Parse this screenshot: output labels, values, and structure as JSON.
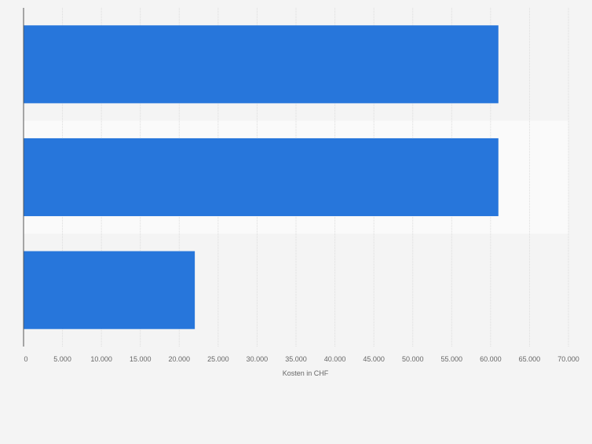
{
  "chart_data": {
    "type": "bar",
    "orientation": "horizontal",
    "categories": [
      "",
      "",
      ""
    ],
    "values": [
      61000,
      61000,
      22000
    ],
    "xlabel": "Kosten in CHF",
    "ylabel": "",
    "xlim": [
      0,
      70000
    ],
    "xticks": [
      0,
      5000,
      10000,
      15000,
      20000,
      25000,
      30000,
      35000,
      40000,
      45000,
      50000,
      55000,
      60000,
      65000,
      70000
    ],
    "xtick_labels": [
      "0",
      "5.000",
      "10.000",
      "15.000",
      "20.000",
      "25.000",
      "30.000",
      "35.000",
      "40.000",
      "45.000",
      "50.000",
      "55.000",
      "60.000",
      "65.000",
      "70.000"
    ],
    "grid": true,
    "legend": "none",
    "colors": {
      "bar": "#2776db",
      "background": "#f4f4f4",
      "band": "#fafafa",
      "grid": "#dcdcdc",
      "axis": "#555555",
      "text": "#666666"
    }
  }
}
